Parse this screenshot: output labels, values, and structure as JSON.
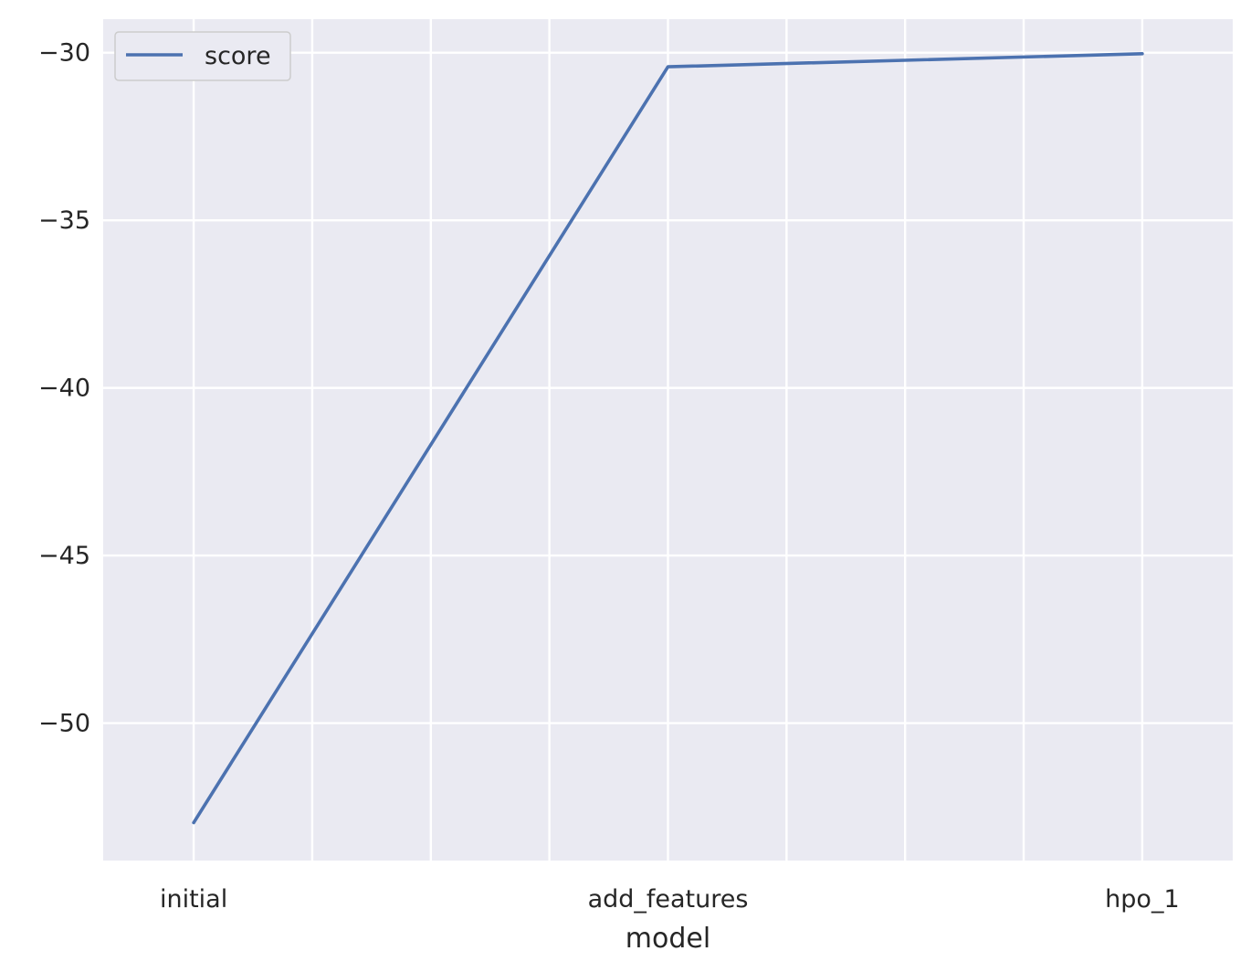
{
  "chart_data": {
    "type": "line",
    "title": "",
    "xlabel": "model",
    "ylabel": "",
    "categories": [
      "initial",
      "add_features",
      "hpo_1"
    ],
    "series": [
      {
        "name": "score",
        "values": [
          -52.97,
          -30.42,
          -30.03
        ]
      }
    ],
    "ylim": [
      -54.1,
      -29.0
    ],
    "yticks": [
      -30,
      -35,
      -40,
      -45,
      -50
    ],
    "ytick_labels": [
      "−30",
      "−35",
      "−40",
      "−45",
      "−50"
    ],
    "x_minor_positions": [
      0.25,
      0.5,
      0.75,
      1.25,
      1.5,
      1.75
    ],
    "grid": true,
    "legend": "top-left",
    "colors": {
      "background": "#eaeaf2",
      "grid": "#ffffff",
      "series": "#4c72b0"
    }
  }
}
